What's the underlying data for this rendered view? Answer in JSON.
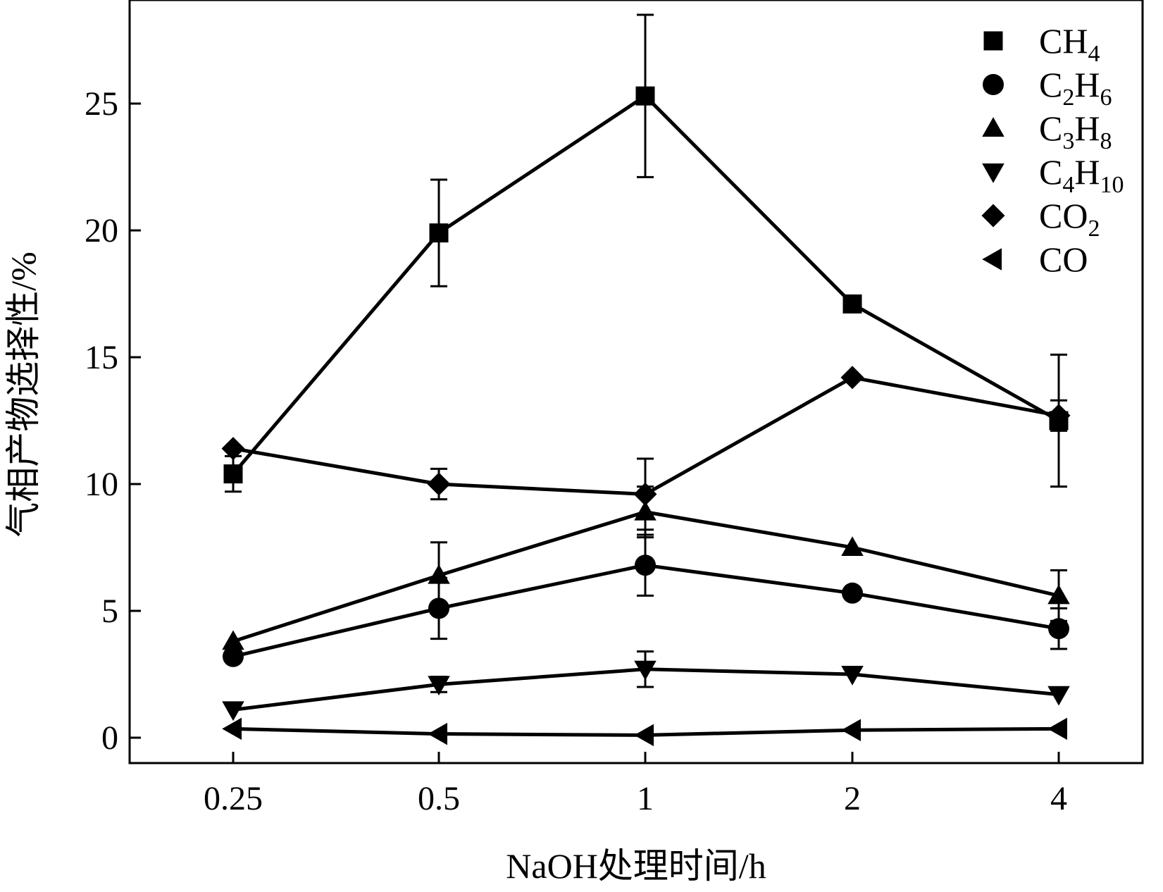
{
  "chart_data": {
    "type": "line",
    "xlabel": "NaOH处理时间/h",
    "ylabel": "气相产物选择性/%",
    "categories": [
      "0.25",
      "0.5",
      "1",
      "2",
      "4"
    ],
    "ylim": [
      -2,
      29
    ],
    "yticks": [
      0,
      5,
      10,
      15,
      20,
      25
    ],
    "grid": false,
    "legend_position": "top-right",
    "series": [
      {
        "name": "CH4",
        "label_main": "CH",
        "label_sub": "4",
        "label_tail": "",
        "label_tail_sub": "",
        "marker": "square",
        "values": [
          10.4,
          19.9,
          25.3,
          17.1,
          12.5
        ],
        "errors": [
          0.7,
          2.1,
          3.2,
          0,
          2.6
        ]
      },
      {
        "name": "C2H6",
        "label_main": "C",
        "label_sub": "2",
        "label_tail": "H",
        "label_tail_sub": "6",
        "marker": "circle",
        "values": [
          3.2,
          5.1,
          6.8,
          5.7,
          4.3
        ],
        "errors": [
          0,
          1.2,
          1.2,
          0,
          0.8
        ]
      },
      {
        "name": "C3H8",
        "label_main": "C",
        "label_sub": "3",
        "label_tail": "H",
        "label_tail_sub": "8",
        "marker": "triangle-up",
        "values": [
          3.8,
          6.4,
          8.9,
          7.5,
          5.6
        ],
        "errors": [
          0,
          1.3,
          1.0,
          0,
          1.0
        ]
      },
      {
        "name": "C4H10",
        "label_main": "C",
        "label_sub": "4",
        "label_tail": "H",
        "label_tail_sub": "10",
        "marker": "triangle-down",
        "values": [
          1.1,
          2.1,
          2.7,
          2.5,
          1.7
        ],
        "errors": [
          0,
          0.3,
          0.7,
          0,
          0
        ]
      },
      {
        "name": "CO2",
        "label_main": "CO",
        "label_sub": "2",
        "label_tail": "",
        "label_tail_sub": "",
        "marker": "diamond",
        "values": [
          11.4,
          10.0,
          9.6,
          14.2,
          12.7
        ],
        "errors": [
          0,
          0.6,
          1.4,
          0,
          0.6
        ]
      },
      {
        "name": "CO",
        "label_main": "CO",
        "label_sub": "",
        "label_tail": "",
        "label_tail_sub": "",
        "marker": "triangle-left",
        "values": [
          0.35,
          0.15,
          0.1,
          0.3,
          0.35
        ],
        "errors": [
          0,
          0,
          0,
          0,
          0
        ]
      }
    ]
  }
}
